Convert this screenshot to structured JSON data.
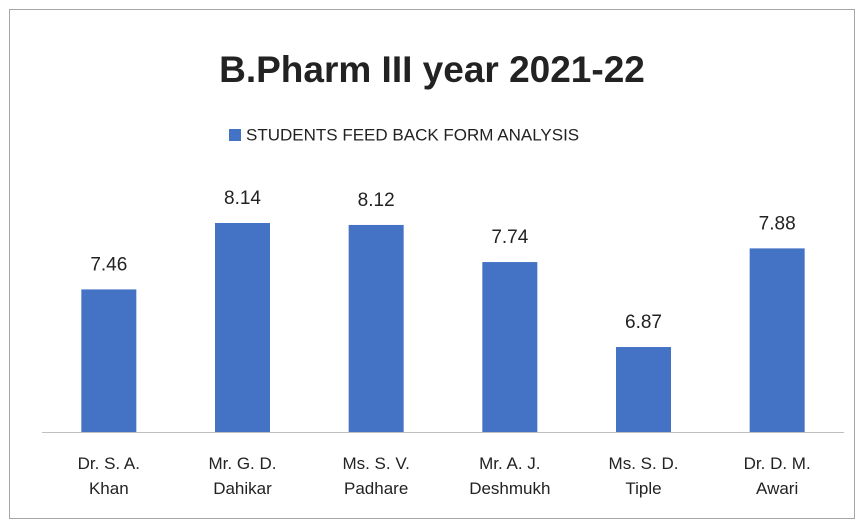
{
  "chart_data": {
    "type": "bar",
    "title": "B.Pharm III year 2021-22",
    "series": [
      {
        "name": "STUDENTS FEED BACK  FORM ANALYSIS",
        "color": "#4472c4",
        "values": [
          7.46,
          8.14,
          8.12,
          7.74,
          6.87,
          7.88
        ]
      }
    ],
    "categories": [
      "Dr. S. A. Khan",
      "Mr. G. D. Dahikar",
      "Ms. S. V. Padhare",
      "Mr. A. J. Deshmukh",
      "Ms. S. D. Tiple",
      "Dr. D. M. Awari"
    ],
    "ylim": [
      6,
      9
    ]
  }
}
